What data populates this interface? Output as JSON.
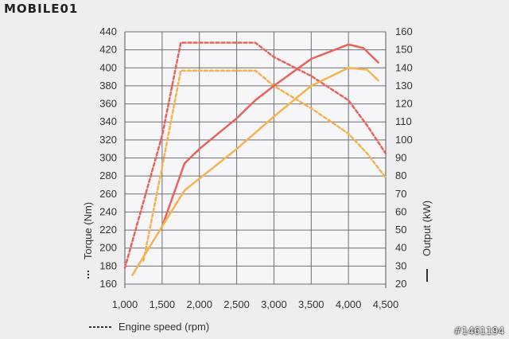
{
  "brand": {
    "logo_text": "MOBILE01"
  },
  "watermark": "#1461194",
  "colors": {
    "red": "#e8635a",
    "orange": "#f5b350",
    "grid": "#6f6f6f",
    "text": "#333333"
  },
  "chart_data": {
    "type": "line",
    "xlabel": "Engine speed (rpm)",
    "ylabel_left": "Torque (Nm)",
    "ylabel_right": "Output (kW)",
    "xlim": [
      1000,
      4500
    ],
    "ylim_left": [
      160,
      440
    ],
    "ylim_right": [
      20,
      160
    ],
    "x_ticks": [
      "1,000",
      "1,500",
      "2,000",
      "2,500",
      "3,000",
      "3,500",
      "4,000",
      "4,500"
    ],
    "y_left_ticks": [
      "160",
      "180",
      "200",
      "220",
      "240",
      "260",
      "280",
      "300",
      "320",
      "340",
      "360",
      "380",
      "400",
      "420",
      "440"
    ],
    "y_right_ticks": [
      "20",
      "30",
      "40",
      "50",
      "60",
      "70",
      "80",
      "90",
      "100",
      "110",
      "120",
      "130",
      "140",
      "150",
      "160"
    ],
    "grid": true,
    "series": [
      {
        "color": "red",
        "style": "dashed",
        "axis": "left",
        "x": [
          1000,
          1500,
          1750,
          2750,
          3000,
          3500,
          4000,
          4250,
          4500
        ],
        "y": [
          178,
          325,
          428,
          428,
          412,
          391,
          364,
          336,
          305
        ]
      },
      {
        "color": "orange",
        "style": "dashed",
        "axis": "left",
        "x": [
          1250,
          1500,
          1750,
          2750,
          3000,
          3500,
          4000,
          4250,
          4500
        ],
        "y": [
          186,
          290,
          397,
          397,
          380,
          355,
          327,
          305,
          278
        ]
      },
      {
        "color": "red",
        "style": "solid",
        "axis": "right",
        "x": [
          1500,
          1800,
          2000,
          2500,
          2750,
          3000,
          3500,
          4000,
          4200,
          4400
        ],
        "y": [
          52,
          87,
          95,
          112,
          122,
          130,
          145,
          153,
          151,
          143
        ]
      },
      {
        "color": "orange",
        "style": "solid",
        "axis": "right",
        "x": [
          1100,
          1500,
          1800,
          2500,
          3000,
          3500,
          4000,
          4250,
          4400
        ],
        "y": [
          25,
          52,
          72,
          95,
          113,
          130,
          140,
          139,
          133
        ]
      }
    ]
  }
}
